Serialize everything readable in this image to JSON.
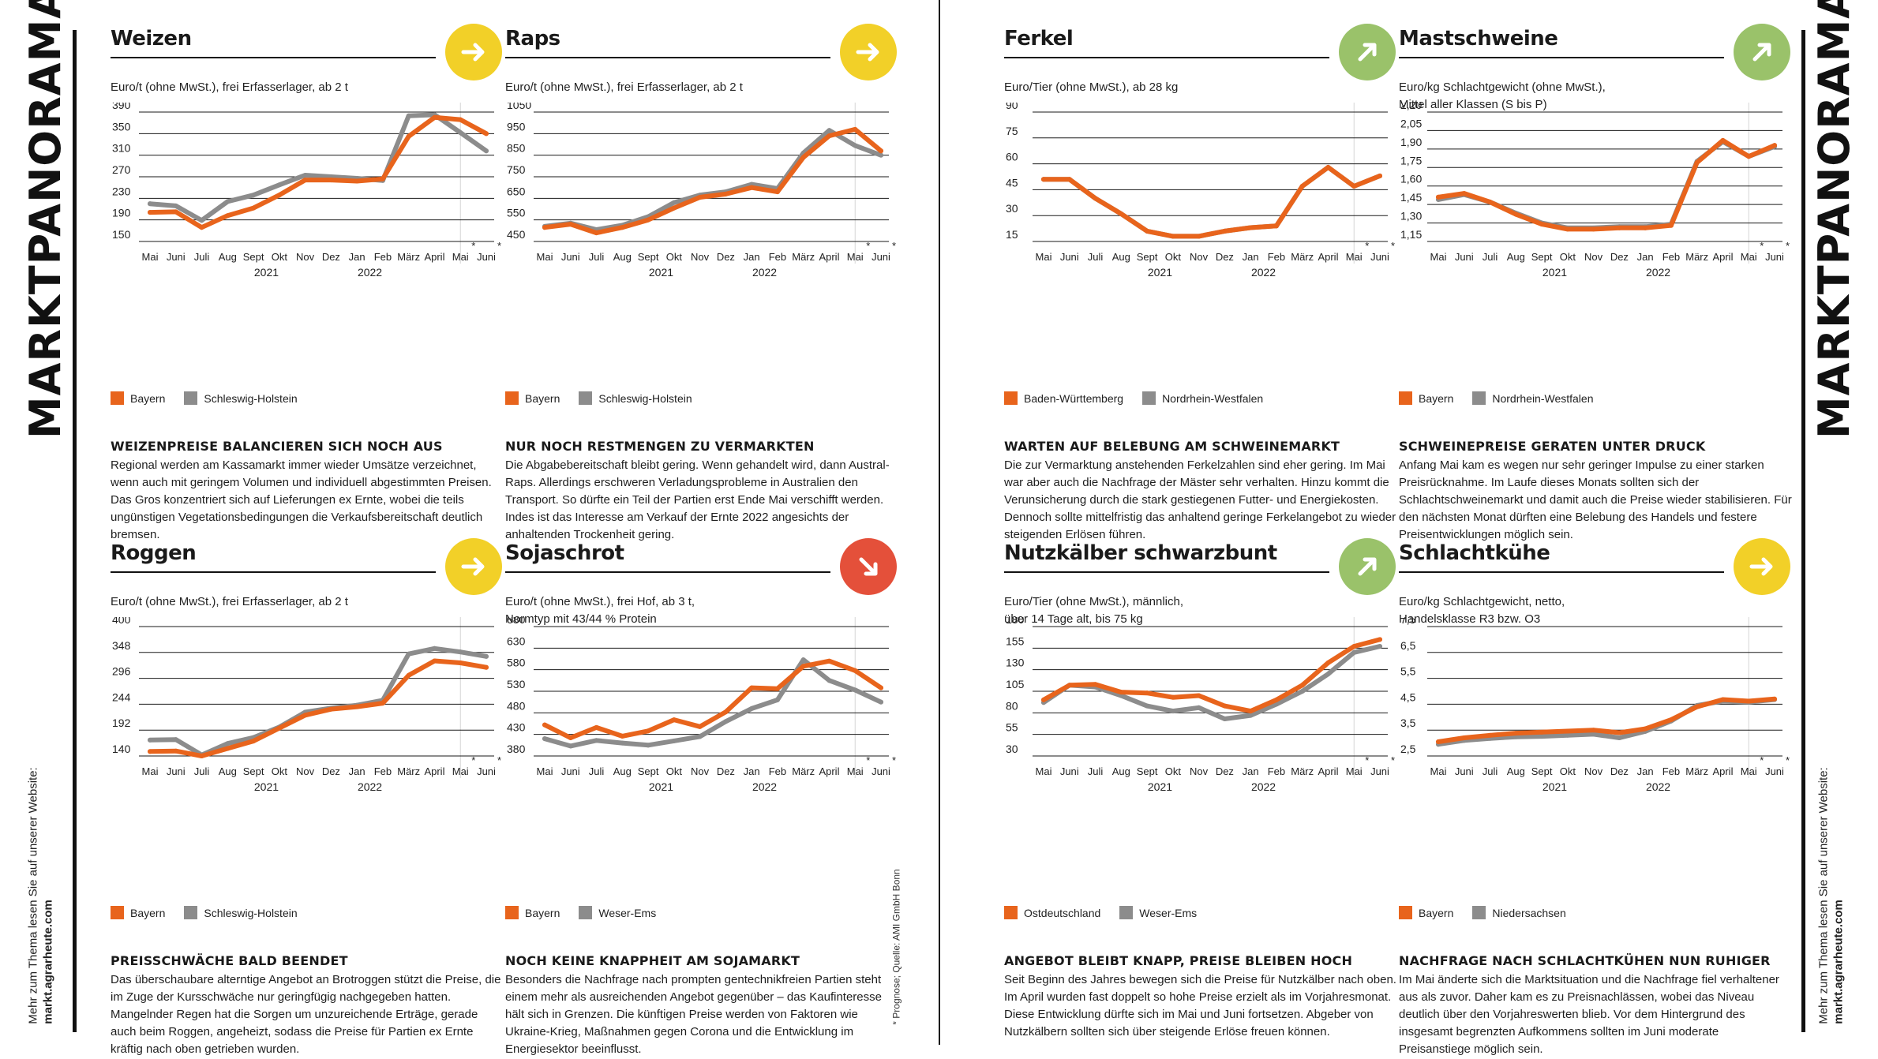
{
  "page": {
    "title": "MARKTPANORAMA",
    "side_note": "Mehr zum Thema lesen Sie auf unserer Website:",
    "side_link": "markt.agrarheute.com",
    "footnote": "* Prognose; Quelle: AMI GmbH Bonn"
  },
  "colors": {
    "primary": "#e8641c",
    "secondary": "#8c8c8c",
    "arrow_yellow": "#f2d028",
    "arrow_green": "#9ac26a",
    "arrow_red": "#e4503a"
  },
  "panels": [
    {
      "title": "Weizen",
      "trend": "right",
      "trend_color": "#f2d028",
      "unit": "Euro/t (ohne MwSt.), frei Erfasserlager, ab 2 t",
      "legend": [
        "Bayern",
        "Schleswig-Holstein"
      ],
      "headline": "Weizenpreise balancieren sich noch aus",
      "text": "Regional werden am Kassamarkt immer wieder Umsätze verzeichnet, wenn auch mit geringem Volumen und individuell abgestimmten Preisen. Das Gros konzentriert sich auf Lieferungen ex Ernte, wobei die teils ungünstigen Vegetationsbedingungen die Verkaufsbereitschaft deutlich bremsen."
    },
    {
      "title": "Raps",
      "trend": "right",
      "trend_color": "#f2d028",
      "unit": "Euro/t (ohne MwSt.), frei Erfasserlager, ab 2 t",
      "legend": [
        "Bayern",
        "Schleswig-Holstein"
      ],
      "headline": "Nur noch Restmengen zu vermarkten",
      "text": "Die Abgabebereitschaft bleibt gering.  Wenn gehandelt wird, dann Austral-Raps. Allerdings erschweren Verladungsprobleme in Australien den Transport. So dürfte ein Teil der Partien erst Ende Mai verschifft werden. Indes ist das Interesse am Verkauf der Ernte 2022 angesichts der anhaltenden Trockenheit gering."
    },
    {
      "title": "Ferkel",
      "trend": "up",
      "trend_color": "#9ac26a",
      "unit": "Euro/Tier (ohne MwSt.), ab 28 kg",
      "legend": [
        "Baden-Württemberg",
        "Nordrhein-Westfalen"
      ],
      "headline": "Warten auf Belebung am Schweinemarkt",
      "text": "Die zur Vermarktung anstehenden Ferkelzahlen sind eher gering. Im Mai war aber auch die Nachfrage der Mäster sehr verhalten. Hinzu kommt die Verunsicherung durch die stark gestiegenen Futter- und Energiekosten. Dennoch sollte mittelfristig das anhaltend geringe Ferkelangebot zu wieder steigenden Erlösen führen."
    },
    {
      "title": "Mastschweine",
      "trend": "up",
      "trend_color": "#9ac26a",
      "unit": "Euro/kg Schlachtgewicht (ohne MwSt.),\nMittel aller Klassen (S bis P)",
      "legend": [
        "Bayern",
        "Nordrhein-Westfalen"
      ],
      "headline": "Schweinepreise geraten unter Druck",
      "text": "Anfang Mai kam es wegen nur sehr geringer Impulse zu einer starken Preisrücknahme. Im Laufe dieses Monats sollten sich der Schlachtschweinemarkt und damit auch die Preise wieder stabilisieren. Für den nächsten Monat dürften eine Belebung des Handels und festere Preisentwicklungen möglich sein."
    },
    {
      "title": "Roggen",
      "trend": "right",
      "trend_color": "#f2d028",
      "unit": "Euro/t (ohne MwSt.), frei Erfasserlager, ab 2 t",
      "legend": [
        "Bayern",
        "Schleswig-Holstein"
      ],
      "headline": "Preisschwäche bald beendet",
      "text": "Das überschaubare alterntige Angebot an Brotroggen stützt die Preise, die im Zuge der Kursschwäche nur geringfügig nachgegeben hatten. Mangelnder Regen hat die Sorgen um unzureichende Erträge, gerade auch beim Roggen, angeheizt, sodass die Preise für Partien ex Ernte kräftig nach oben getrieben wurden."
    },
    {
      "title": "Sojaschrot",
      "trend": "down",
      "trend_color": "#e4503a",
      "unit": "Euro/t (ohne MwSt.), frei Hof, ab 3 t,\nNormtyp mit 43/44 % Protein",
      "legend": [
        "Bayern",
        "Weser-Ems"
      ],
      "headline": "Noch keine Knappheit am Sojamarkt",
      "text": "Besonders die Nachfrage nach prompten gentechnikfreien Partien steht einem mehr als ausreichenden Angebot gegenüber – das Kaufinteresse hält sich in Grenzen. Die künftigen Preise werden von Faktoren wie Ukraine-Krieg, Maßnahmen gegen Corona und die Entwicklung im Energiesektor beeinflusst."
    },
    {
      "title": "Nutzkälber schwarzbunt",
      "trend": "up",
      "trend_color": "#9ac26a",
      "unit": "Euro/Tier (ohne MwSt.),  männlich,\nüber 14 Tage alt, bis 75 kg",
      "legend": [
        "Ostdeutschland",
        "Weser-Ems"
      ],
      "headline": "Angebot bleibt knapp, Preise bleiben hoch",
      "text": "Seit Beginn des Jahres bewegen sich die Preise für Nutzkälber nach oben. Im April wurden fast doppelt so hohe Preise erzielt als im Vorjahresmonat. Diese Entwicklung dürfte sich im Mai und Juni fortsetzen. Abgeber von Nutzkälbern sollten sich über steigende Erlöse freuen können."
    },
    {
      "title": "Schlachtkühe",
      "trend": "right",
      "trend_color": "#f2d028",
      "unit": "Euro/kg Schlachtgewicht, netto,\nHandelsklasse R3 bzw. O3",
      "legend": [
        "Bayern",
        "Niedersachsen"
      ],
      "headline": "Nachfrage nach Schlachtkühen nun ruhiger",
      "text": "Im Mai änderte sich die Marktsituation und die Nachfrage fiel verhaltener aus als zuvor. Daher kam es zu Preisnachlässen, wobei das Niveau deutlich über den Vorjahreswerten blieb. Vor dem Hintergrund des insgesamt begrenzten Aufkommens sollten im Juni moderate Preisanstiege möglich sein."
    }
  ],
  "chart_data": [
    {
      "type": "line",
      "categories": [
        "Mai",
        "Juni",
        "Juli",
        "Aug",
        "Sept",
        "Okt",
        "Nov",
        "Dez",
        "Jan",
        "Feb",
        "März",
        "April",
        "Mai",
        "Juni"
      ],
      "year_labels": [
        "2021",
        "2022"
      ],
      "forecast_marks": [
        "*",
        "*"
      ],
      "yticks": [
        "390",
        "350",
        "310",
        "270",
        "230",
        "190",
        "150"
      ],
      "ylim": [
        150,
        390
      ],
      "gridlines": "horizontal",
      "series": [
        {
          "name": "Bayern",
          "color": "#e8641c",
          "values": [
            204,
            205,
            176,
            198,
            212,
            236,
            264,
            264,
            262,
            266,
            345,
            380,
            376,
            350
          ]
        },
        {
          "name": "Schleswig-Holstein",
          "color": "#8c8c8c",
          "values": [
            220,
            216,
            189,
            224,
            236,
            255,
            273,
            270,
            267,
            263,
            383,
            385,
            352,
            318
          ]
        }
      ]
    },
    {
      "type": "line",
      "categories": [
        "Mai",
        "Juni",
        "Juli",
        "Aug",
        "Sept",
        "Okt",
        "Nov",
        "Dez",
        "Jan",
        "Feb",
        "März",
        "April",
        "Mai",
        "Juni"
      ],
      "year_labels": [
        "2021",
        "2022"
      ],
      "forecast_marks": [
        "*",
        "*"
      ],
      "yticks": [
        "1050",
        "950",
        "850",
        "750",
        "650",
        "550",
        "450"
      ],
      "ylim": [
        450,
        1050
      ],
      "gridlines": "horizontal",
      "series": [
        {
          "name": "Bayern",
          "color": "#e8641c",
          "values": [
            515,
            530,
            490,
            515,
            550,
            605,
            655,
            670,
            700,
            680,
            840,
            940,
            970,
            870
          ]
        },
        {
          "name": "Schleswig-Holstein",
          "color": "#8c8c8c",
          "values": [
            520,
            535,
            505,
            525,
            565,
            630,
            665,
            680,
            715,
            695,
            860,
            965,
            895,
            850
          ]
        }
      ]
    },
    {
      "type": "line",
      "categories": [
        "Mai",
        "Juni",
        "Juli",
        "Aug",
        "Sept",
        "Okt",
        "Nov",
        "Dez",
        "Jan",
        "Feb",
        "März",
        "April",
        "Mai",
        "Juni"
      ],
      "year_labels": [
        "2021",
        "2022"
      ],
      "forecast_marks": [
        "*",
        "*"
      ],
      "yticks": [
        "90",
        "75",
        "60",
        "45",
        "30",
        "15"
      ],
      "ylim": [
        15,
        90
      ],
      "gridlines": "horizontal",
      "series": [
        {
          "name": "Baden-Württemberg",
          "color": "#e8641c",
          "values": [
            51,
            51,
            40,
            31,
            21,
            18,
            18,
            21,
            23,
            24,
            47,
            58,
            47,
            53
          ]
        },
        {
          "name": "Nordrhein-Westfalen",
          "color": "#8c8c8c",
          "values": [
            51,
            51,
            40,
            31,
            21,
            18,
            18,
            21,
            23,
            24,
            47,
            58,
            47,
            53
          ]
        }
      ]
    },
    {
      "type": "line",
      "categories": [
        "Mai",
        "Juni",
        "Juli",
        "Aug",
        "Sept",
        "Okt",
        "Nov",
        "Dez",
        "Jan",
        "Feb",
        "März",
        "April",
        "Mai",
        "Juni"
      ],
      "year_labels": [
        "2021",
        "2022"
      ],
      "forecast_marks": [
        "*",
        "*"
      ],
      "yticks": [
        "2,20",
        "2,05",
        "1,90",
        "1,75",
        "1,60",
        "1,45",
        "1,30",
        "1,15"
      ],
      "ylim": [
        1.15,
        2.2
      ],
      "gridlines": "horizontal",
      "series": [
        {
          "name": "Bayern",
          "color": "#e8641c",
          "values": [
            1.51,
            1.54,
            1.47,
            1.37,
            1.29,
            1.25,
            1.25,
            1.26,
            1.26,
            1.28,
            1.79,
            1.97,
            1.84,
            1.93
          ]
        },
        {
          "name": "Nordrhein-Westfalen",
          "color": "#8c8c8c",
          "values": [
            1.49,
            1.53,
            1.47,
            1.38,
            1.3,
            1.26,
            1.26,
            1.27,
            1.27,
            1.29,
            1.8,
            1.96,
            1.84,
            1.92
          ]
        }
      ]
    },
    {
      "type": "line",
      "categories": [
        "Mai",
        "Juni",
        "Juli",
        "Aug",
        "Sept",
        "Okt",
        "Nov",
        "Dez",
        "Jan",
        "Feb",
        "März",
        "April",
        "Mai",
        "Juni"
      ],
      "year_labels": [
        "2021",
        "2022"
      ],
      "forecast_marks": [
        "*",
        "*"
      ],
      "yticks": [
        "400",
        "348",
        "296",
        "244",
        "192",
        "140"
      ],
      "ylim": [
        140,
        400
      ],
      "gridlines": "horizontal",
      "series": [
        {
          "name": "Bayern",
          "color": "#e8641c",
          "values": [
            149,
            150,
            140,
            155,
            170,
            196,
            222,
            234,
            239,
            246,
            302,
            331,
            327,
            318
          ]
        },
        {
          "name": "Schleswig-Holstein",
          "color": "#8c8c8c",
          "values": [
            172,
            173,
            142,
            165,
            177,
            198,
            228,
            236,
            242,
            252,
            345,
            356,
            349,
            340
          ]
        }
      ]
    },
    {
      "type": "line",
      "categories": [
        "Mai",
        "Juni",
        "Juli",
        "Aug",
        "Sept",
        "Okt",
        "Nov",
        "Dez",
        "Jan",
        "Feb",
        "März",
        "April",
        "Mai",
        "Juni"
      ],
      "year_labels": [
        "2021",
        "2022"
      ],
      "forecast_marks": [
        "*",
        "*"
      ],
      "yticks": [
        "680",
        "630",
        "580",
        "530",
        "480",
        "430",
        "380"
      ],
      "ylim": [
        380,
        680
      ],
      "gridlines": "horizontal",
      "series": [
        {
          "name": "Bayern",
          "color": "#e8641c",
          "values": [
            452,
            422,
            446,
            426,
            438,
            464,
            448,
            482,
            538,
            536,
            588,
            600,
            578,
            538
          ]
        },
        {
          "name": "Weser-Ems",
          "color": "#8c8c8c",
          "values": [
            420,
            403,
            416,
            410,
            405,
            415,
            425,
            460,
            490,
            510,
            603,
            555,
            533,
            505
          ]
        }
      ]
    },
    {
      "type": "line",
      "categories": [
        "Mai",
        "Juni",
        "Juli",
        "Aug",
        "Sept",
        "Okt",
        "Nov",
        "Dez",
        "Jan",
        "Feb",
        "März",
        "April",
        "Mai",
        "Juni"
      ],
      "year_labels": [
        "2021",
        "2022"
      ],
      "forecast_marks": [
        "*",
        "*"
      ],
      "yticks": [
        "180",
        "155",
        "130",
        "105",
        "80",
        "55",
        "30"
      ],
      "ylim": [
        30,
        180
      ],
      "gridlines": "horizontal",
      "series": [
        {
          "name": "Ostdeutschland",
          "color": "#e8641c",
          "values": [
            95,
            112,
            113,
            104,
            103,
            98,
            100,
            88,
            82,
            95,
            112,
            138,
            157,
            165
          ]
        },
        {
          "name": "Weser-Ems",
          "color": "#8c8c8c",
          "values": [
            92,
            112,
            110,
            100,
            88,
            82,
            86,
            73,
            77,
            90,
            105,
            125,
            150,
            157
          ]
        }
      ]
    },
    {
      "type": "line",
      "categories": [
        "Mai",
        "Juni",
        "Juli",
        "Aug",
        "Sept",
        "Okt",
        "Nov",
        "Dez",
        "Jan",
        "Feb",
        "März",
        "April",
        "Mai",
        "Juni"
      ],
      "year_labels": [
        "2021",
        "2022"
      ],
      "forecast_marks": [
        "*",
        "*"
      ],
      "yticks": [
        "7,5",
        "6,5",
        "5,5",
        "4,5",
        "3,5",
        "2,5"
      ],
      "ylim": [
        2.5,
        7.5
      ],
      "gridlines": "horizontal",
      "series": [
        {
          "name": "Bayern",
          "color": "#e8641c",
          "values": [
            3.05,
            3.2,
            3.3,
            3.38,
            3.42,
            3.46,
            3.5,
            3.4,
            3.55,
            3.9,
            4.4,
            4.68,
            4.62,
            4.7
          ]
        },
        {
          "name": "Niedersachsen",
          "color": "#8c8c8c",
          "values": [
            2.95,
            3.1,
            3.18,
            3.24,
            3.26,
            3.3,
            3.34,
            3.2,
            3.45,
            3.85,
            4.45,
            4.62,
            4.58,
            4.68
          ]
        }
      ]
    }
  ]
}
